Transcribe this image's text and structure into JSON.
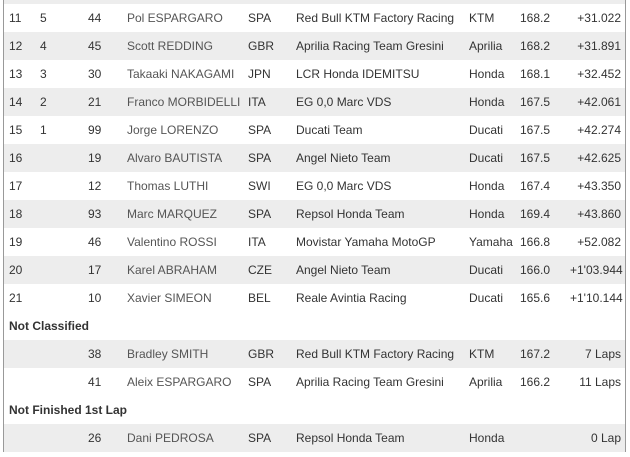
{
  "classified": [
    {
      "pos": "11",
      "pts": "5",
      "num": "44",
      "rider": "Pol ESPARGARO",
      "nation": "SPA",
      "team": "Red Bull KTM Factory Racing",
      "bike": "KTM",
      "speed": "168.2",
      "time": "+31.022"
    },
    {
      "pos": "12",
      "pts": "4",
      "num": "45",
      "rider": "Scott REDDING",
      "nation": "GBR",
      "team": "Aprilia Racing Team Gresini",
      "bike": "Aprilia",
      "speed": "168.2",
      "time": "+31.891"
    },
    {
      "pos": "13",
      "pts": "3",
      "num": "30",
      "rider": "Takaaki NAKAGAMI",
      "nation": "JPN",
      "team": "LCR Honda IDEMITSU",
      "bike": "Honda",
      "speed": "168.1",
      "time": "+32.452"
    },
    {
      "pos": "14",
      "pts": "2",
      "num": "21",
      "rider": "Franco MORBIDELLI",
      "nation": "ITA",
      "team": "EG 0,0 Marc VDS",
      "bike": "Honda",
      "speed": "167.5",
      "time": "+42.061"
    },
    {
      "pos": "15",
      "pts": "1",
      "num": "99",
      "rider": "Jorge LORENZO",
      "nation": "SPA",
      "team": "Ducati Team",
      "bike": "Ducati",
      "speed": "167.5",
      "time": "+42.274"
    },
    {
      "pos": "16",
      "pts": "",
      "num": "19",
      "rider": "Alvaro BAUTISTA",
      "nation": "SPA",
      "team": "Angel Nieto Team",
      "bike": "Ducati",
      "speed": "167.5",
      "time": "+42.625"
    },
    {
      "pos": "17",
      "pts": "",
      "num": "12",
      "rider": "Thomas LUTHI",
      "nation": "SWI",
      "team": "EG 0,0 Marc VDS",
      "bike": "Honda",
      "speed": "167.4",
      "time": "+43.350"
    },
    {
      "pos": "18",
      "pts": "",
      "num": "93",
      "rider": "Marc MARQUEZ",
      "nation": "SPA",
      "team": "Repsol Honda Team",
      "bike": "Honda",
      "speed": "169.4",
      "time": "+43.860"
    },
    {
      "pos": "19",
      "pts": "",
      "num": "46",
      "rider": "Valentino ROSSI",
      "nation": "ITA",
      "team": "Movistar Yamaha MotoGP",
      "bike": "Yamaha",
      "speed": "166.8",
      "time": "+52.082"
    },
    {
      "pos": "20",
      "pts": "",
      "num": "17",
      "rider": "Karel ABRAHAM",
      "nation": "CZE",
      "team": "Angel Nieto Team",
      "bike": "Ducati",
      "speed": "166.0",
      "time": "+1'03.944"
    },
    {
      "pos": "21",
      "pts": "",
      "num": "10",
      "rider": "Xavier SIMEON",
      "nation": "BEL",
      "team": "Reale Avintia Racing",
      "bike": "Ducati",
      "speed": "165.6",
      "time": "+1'10.144"
    }
  ],
  "not_classified_label": "Not Classified",
  "not_classified": [
    {
      "pos": "",
      "pts": "",
      "num": "38",
      "rider": "Bradley SMITH",
      "nation": "GBR",
      "team": "Red Bull KTM Factory Racing",
      "bike": "KTM",
      "speed": "167.2",
      "time": "7 Laps"
    },
    {
      "pos": "",
      "pts": "",
      "num": "41",
      "rider": "Aleix ESPARGARO",
      "nation": "SPA",
      "team": "Aprilia Racing Team Gresini",
      "bike": "Aprilia",
      "speed": "166.2",
      "time": "11 Laps"
    }
  ],
  "not_finished_label": "Not Finished 1st Lap",
  "not_finished": [
    {
      "pos": "",
      "pts": "",
      "num": "26",
      "rider": "Dani PEDROSA",
      "nation": "SPA",
      "team": "Repsol Honda Team",
      "bike": "Honda",
      "speed": "",
      "time": "0 Lap"
    }
  ]
}
